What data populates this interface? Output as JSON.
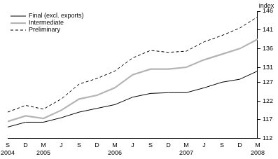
{
  "chart_data": {
    "type": "line",
    "ylabel": "index",
    "categories": [
      [
        "S",
        "2004"
      ],
      "D",
      [
        "M",
        "2005"
      ],
      "J",
      "S",
      "D",
      [
        "M",
        "2006"
      ],
      "J",
      "S",
      "D",
      [
        "M",
        "2007"
      ],
      "J",
      "S",
      "D",
      [
        "M",
        "2008"
      ]
    ],
    "series": [
      {
        "name": "Final (excl. exports)",
        "color": "#000000",
        "line_style": "solid",
        "values": [
          115,
          116.3,
          116.3,
          117.5,
          119,
          120,
          121,
          123,
          124,
          124.2,
          124.2,
          125.5,
          127,
          127.8,
          130
        ]
      },
      {
        "name": "Intermediate",
        "color": "#b4b4b4",
        "line_style": "solid",
        "values": [
          116.5,
          118,
          117.3,
          119.5,
          122.5,
          123.5,
          125.5,
          129,
          130.5,
          130.5,
          131,
          133,
          134.5,
          136,
          138.5
        ]
      },
      {
        "name": "Preliminary",
        "color": "#000000",
        "line_style": "dashed",
        "values": [
          119,
          120.8,
          119.8,
          122.5,
          126.5,
          128,
          130,
          133.5,
          135.5,
          135,
          135.3,
          137.8,
          139.5,
          141.5,
          144.5
        ]
      }
    ],
    "ylim": [
      112,
      146
    ],
    "yticks": [
      112,
      117,
      122,
      127,
      131,
      136,
      141,
      146
    ],
    "grid": false,
    "legend": "upper left"
  }
}
